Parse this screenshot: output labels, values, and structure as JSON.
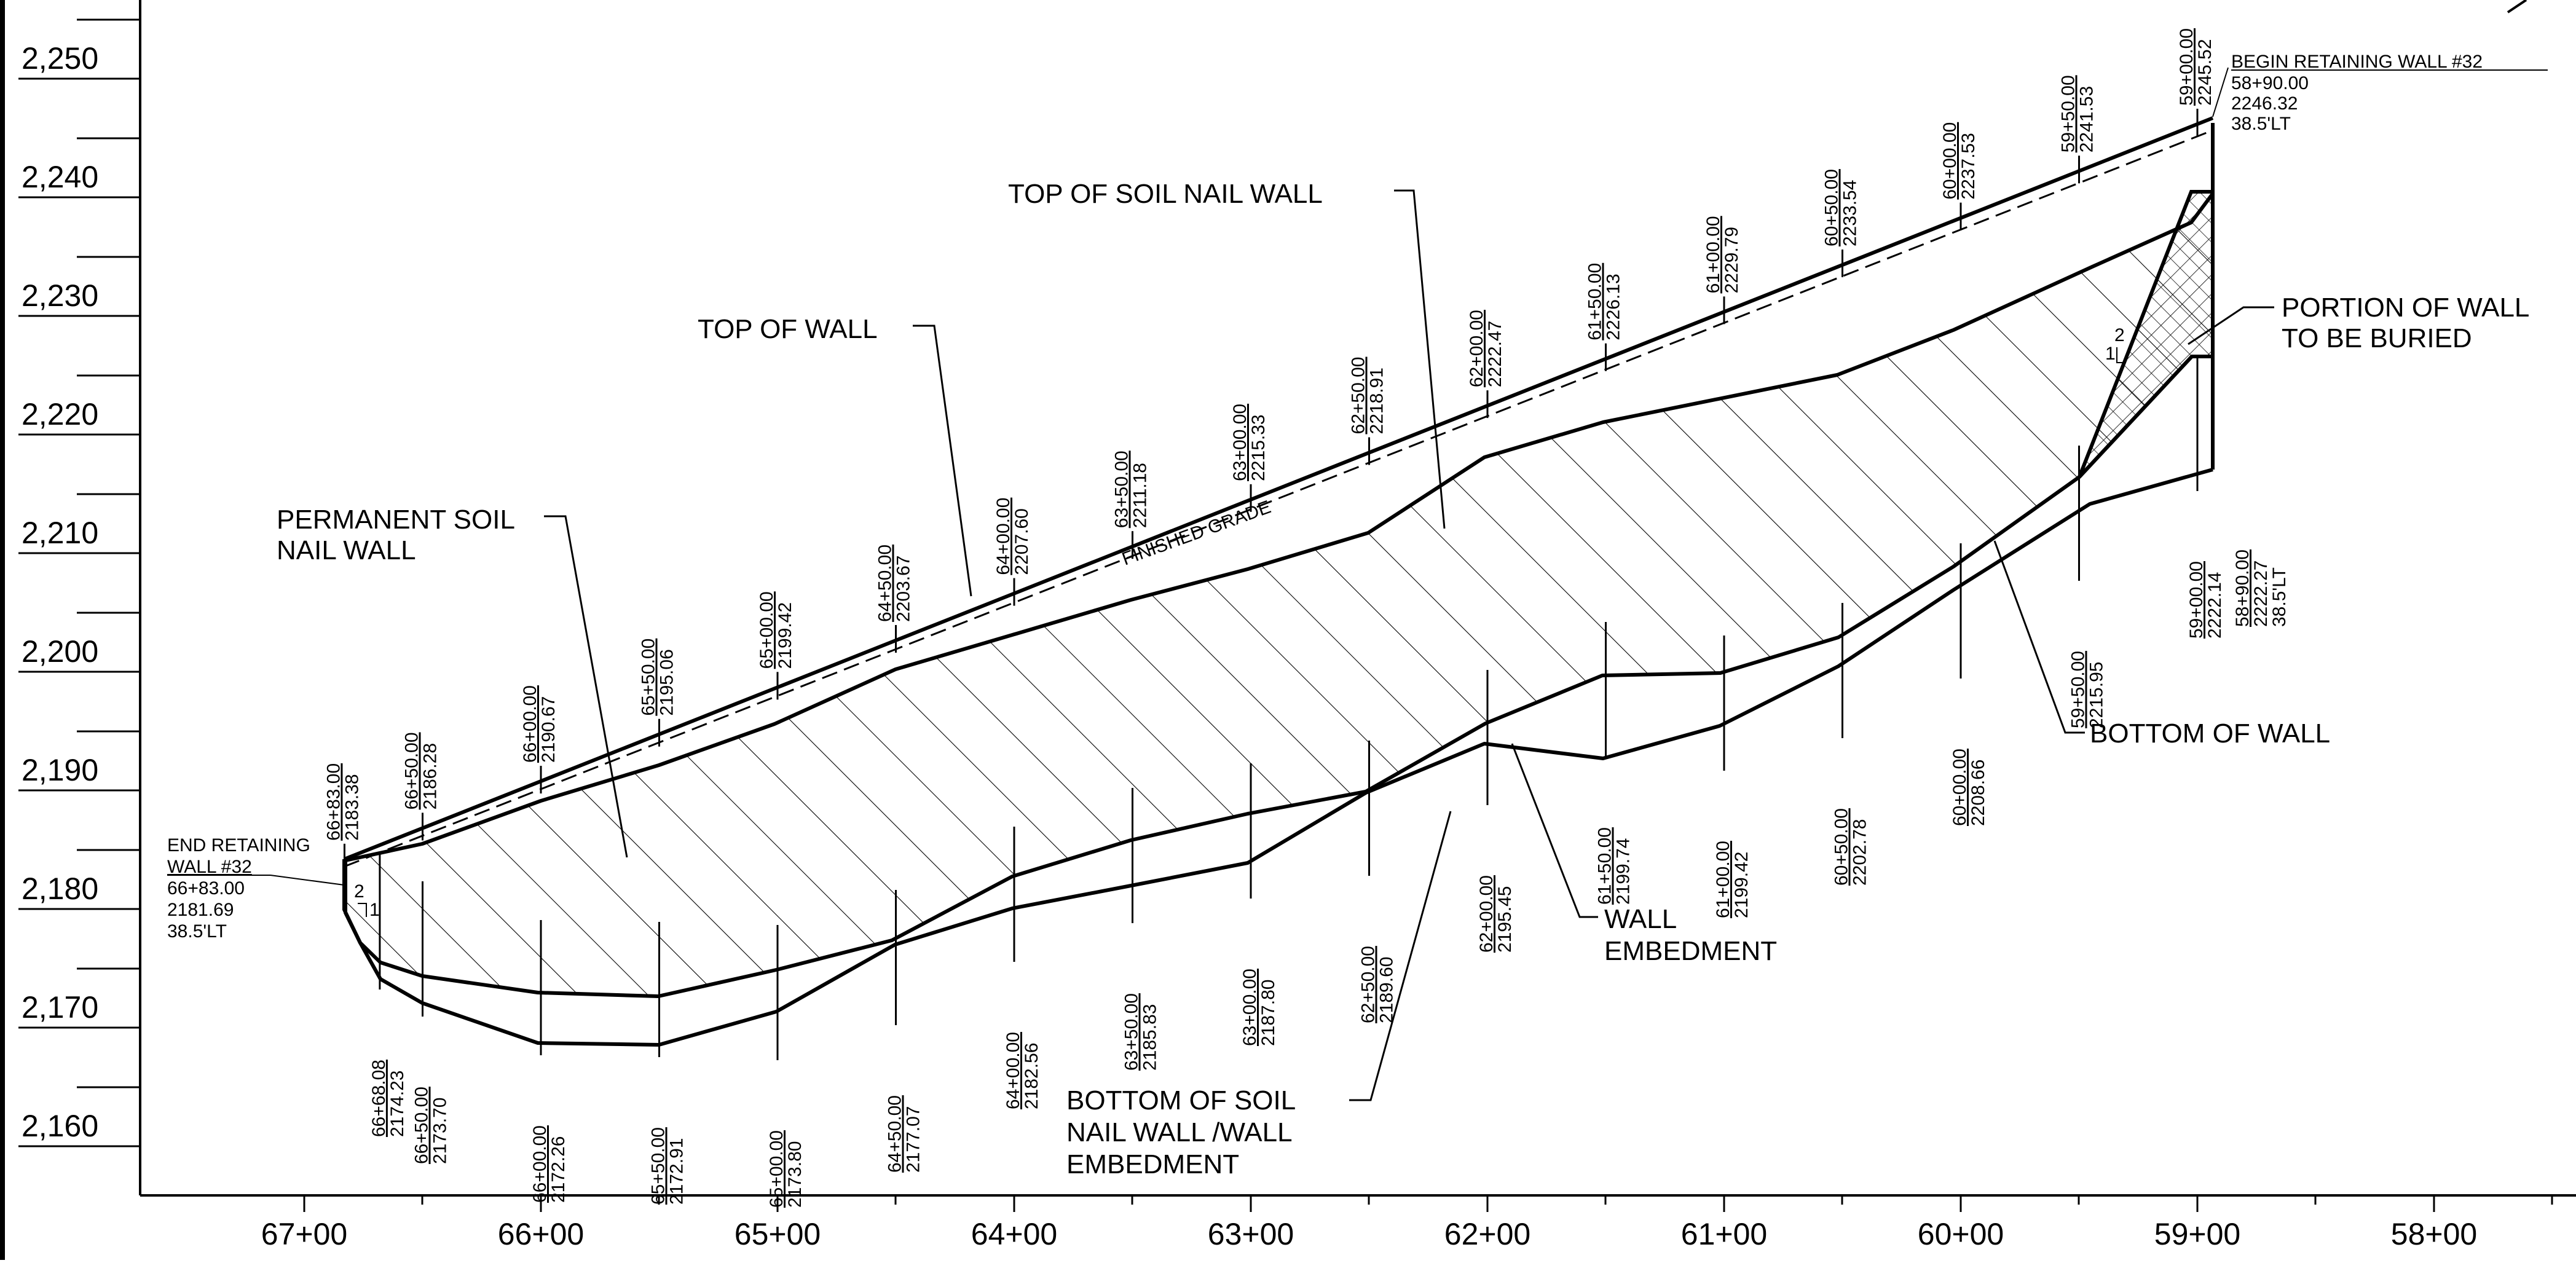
{
  "elevation_axis": [
    "2,250",
    "2,240",
    "2,230",
    "2,220",
    "2,210",
    "2,200",
    "2,190",
    "2,180",
    "2,170",
    "2,160"
  ],
  "station_axis": [
    "67+00",
    "66+00",
    "65+00",
    "64+00",
    "63+00",
    "62+00",
    "61+00",
    "60+00",
    "59+00",
    "58+00"
  ],
  "labels": {
    "top_soil_nail_wall": "TOP OF SOIL NAIL WALL",
    "top_of_wall": "TOP OF WALL",
    "permanent_soil_1": "PERMANENT SOIL",
    "permanent_soil_2": "NAIL WALL",
    "finished_grade": "FINISHED GRADE",
    "portion_1": "PORTION OF WALL",
    "portion_2": "TO BE BURIED",
    "bottom_of_wall": "BOTTOM OF WALL",
    "wall_embed_1": "WALL",
    "wall_embed_2": "EMBEDMENT",
    "bottom_soil_1": "BOTTOM OF SOIL",
    "bottom_soil_2": "NAIL WALL /WALL",
    "bottom_soil_3": "EMBEDMENT",
    "slope_2": "2",
    "slope_1": "1"
  },
  "end_wall": {
    "l1": "END RETAINING",
    "l2": "WALL #32",
    "sta": "66+83.00",
    "elev": "2181.69",
    "off": "38.5'LT"
  },
  "begin_wall": {
    "l1": "BEGIN RETAINING WALL #32",
    "sta": "58+90.00",
    "elev": "2246.32",
    "off": "38.5'LT"
  },
  "top_stations": [
    {
      "sta": "66+83.00",
      "elev": "2183.38"
    },
    {
      "sta": "66+50.00",
      "elev": "2186.28"
    },
    {
      "sta": "66+00.00",
      "elev": "2190.67"
    },
    {
      "sta": "65+50.00",
      "elev": "2195.06"
    },
    {
      "sta": "65+00.00",
      "elev": "2199.42"
    },
    {
      "sta": "64+50.00",
      "elev": "2203.67"
    },
    {
      "sta": "64+00.00",
      "elev": "2207.60"
    },
    {
      "sta": "63+50.00",
      "elev": "2211.18"
    },
    {
      "sta": "63+00.00",
      "elev": "2215.33"
    },
    {
      "sta": "62+50.00",
      "elev": "2218.91"
    },
    {
      "sta": "62+00.00",
      "elev": "2222.47"
    },
    {
      "sta": "61+50.00",
      "elev": "2226.13"
    },
    {
      "sta": "61+00.00",
      "elev": "2229.79"
    },
    {
      "sta": "60+50.00",
      "elev": "2233.54"
    },
    {
      "sta": "60+00.00",
      "elev": "2237.53"
    },
    {
      "sta": "59+50.00",
      "elev": "2241.53"
    },
    {
      "sta": "59+00.00",
      "elev": "2245.52"
    }
  ],
  "bottom_stations": [
    {
      "sta": "66+68.08",
      "elev": "2174.23"
    },
    {
      "sta": "66+50.00",
      "elev": "2173.70"
    },
    {
      "sta": "66+00.00",
      "elev": "2172.26"
    },
    {
      "sta": "65+50.00",
      "elev": "2172.91"
    },
    {
      "sta": "65+00.00",
      "elev": "2173.80"
    },
    {
      "sta": "64+50.00",
      "elev": "2177.07"
    },
    {
      "sta": "64+00.00",
      "elev": "2182.56"
    },
    {
      "sta": "63+50.00",
      "elev": "2185.83"
    },
    {
      "sta": "63+00.00",
      "elev": "2187.80"
    },
    {
      "sta": "62+50.00",
      "elev": "2189.60"
    },
    {
      "sta": "62+00.00",
      "elev": "2195.45"
    },
    {
      "sta": "61+50.00",
      "elev": "2199.74"
    },
    {
      "sta": "61+00.00",
      "elev": "2199.42"
    },
    {
      "sta": "60+50.00",
      "elev": "2202.78"
    },
    {
      "sta": "60+00.00",
      "elev": "2208.66"
    },
    {
      "sta": "59+50.00",
      "elev": "2215.95"
    },
    {
      "sta": "59+00.00",
      "elev": "2222.14"
    },
    {
      "sta": "58+90.00",
      "elev": "2222.27",
      "off": "38.5'LT"
    }
  ]
}
